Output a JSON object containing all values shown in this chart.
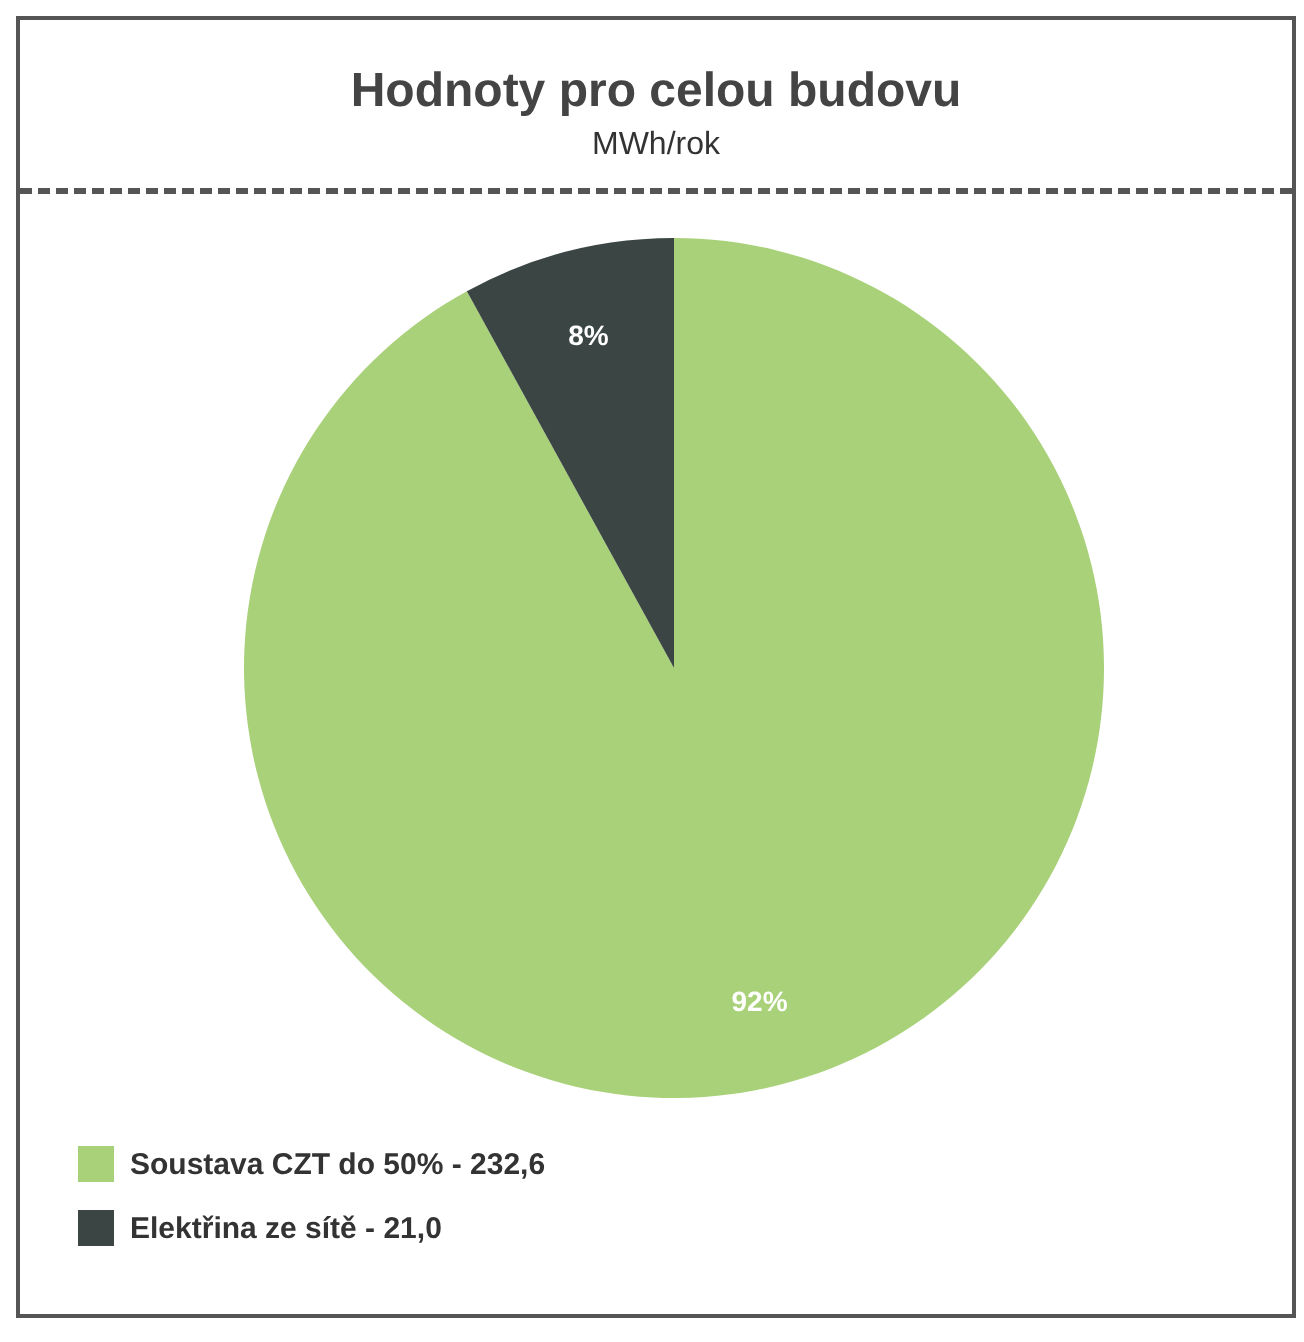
{
  "chart_data": {
    "type": "pie",
    "title": "Hodnoty pro celou budovu",
    "subtitle": "MWh/rok",
    "categories": [
      "Soustava CZT do 50% - 232,6",
      "Elektřina ze sítě - 21,0"
    ],
    "values": [
      92,
      8
    ],
    "colors": [
      "#a9d17a",
      "#3b4644"
    ],
    "value_labels": [
      "92%",
      "8%"
    ],
    "legend": "bottom left"
  }
}
